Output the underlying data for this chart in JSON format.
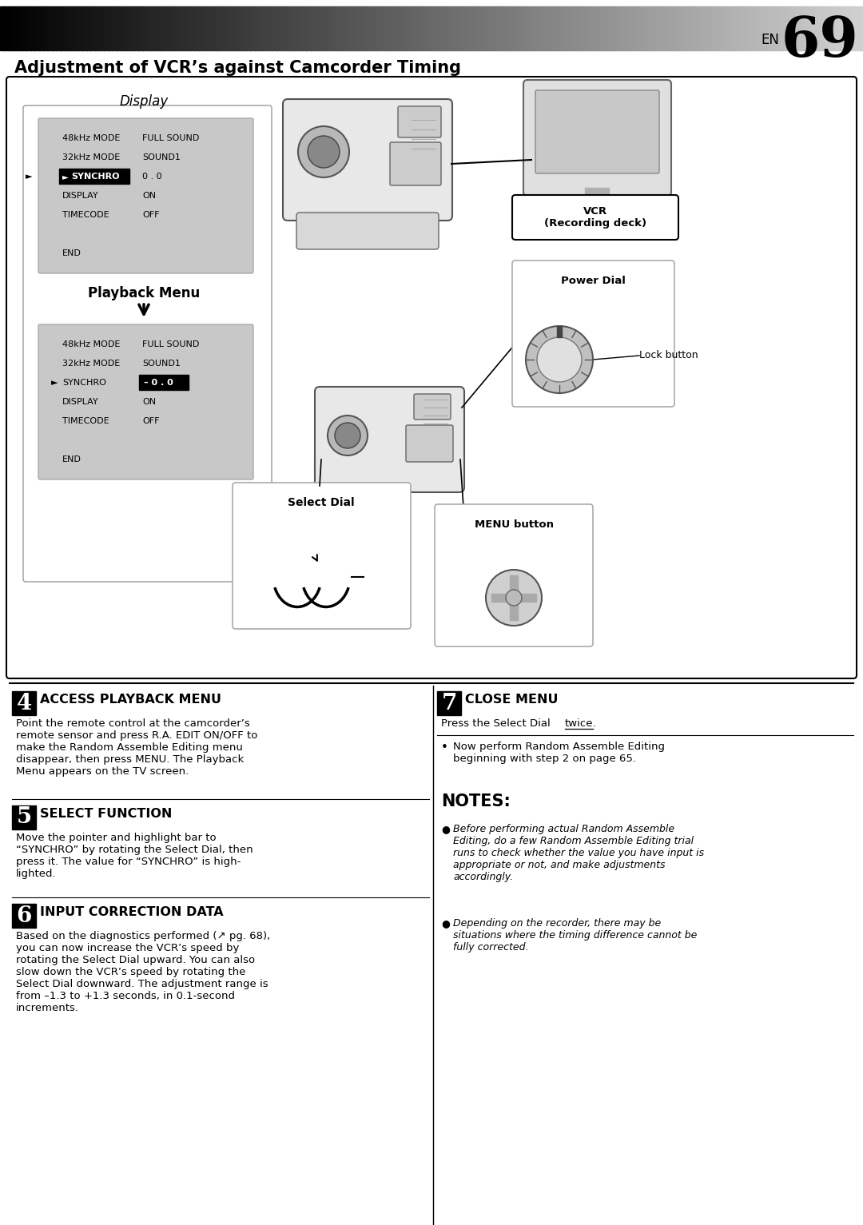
{
  "page_num": "69",
  "title": "Adjustment of VCR’s against Camcorder Timing",
  "bg_color": "#ffffff",
  "display_label": "Display",
  "playback_menu_label": "Playback Menu",
  "menu1_lines": [
    [
      "48kHz MODE",
      "FULL SOUND"
    ],
    [
      "32kHz MODE",
      "SOUND1"
    ],
    [
      "SYNCHRO",
      "0 . 0"
    ],
    [
      "DISPLAY",
      "ON"
    ],
    [
      "TIMECODE",
      "OFF"
    ],
    [
      "",
      ""
    ],
    [
      "END",
      ""
    ]
  ],
  "menu2_lines": [
    [
      "48kHz MODE",
      "FULL SOUND"
    ],
    [
      "32kHz MODE",
      "SOUND1"
    ],
    [
      "SYNCHRO",
      "– 0 . 0"
    ],
    [
      "DISPLAY",
      "ON"
    ],
    [
      "TIMECODE",
      "OFF"
    ],
    [
      "",
      ""
    ],
    [
      "END",
      ""
    ]
  ],
  "vcr_label": "VCR\n(Recording deck)",
  "select_dial_label": "Select Dial",
  "power_dial_label": "Power Dial",
  "lock_button_label": "Lock button",
  "menu_button_label": "MENU button",
  "step4_num": "4",
  "step4_title": "ACCESS PLAYBACK MENU",
  "step4_body1": "Point the remote control at the camcorder’s\nremote sensor and press ",
  "step4_body1_bold": "R.A. EDIT ON/OFF",
  "step4_body1_end": " to\nmake the Random Assemble Editing menu\ndisappear, then press ",
  "step4_body1_bold2": "MENU",
  "step4_body1_end2": ". The Playback\nMenu appears on the TV screen.",
  "step5_num": "5",
  "step5_title": "SELECT FUNCTION",
  "step5_body": "Move the pointer and highlight bar to\n“SYNCHRO” by rotating the Select Dial, then\npress it. The value for “SYNCHRO” is high-\nlighted.",
  "step6_num": "6",
  "step6_title": "INPUT CORRECTION DATA",
  "step6_body": "Based on the diagnostics performed (↗ pg. 68),\nyou can now increase the VCR’s speed by\nrotating the Select Dial upward. You can also\nslow down the VCR’s speed by rotating the\nSelect Dial downward. The adjustment range is\nfrom –1.3 to +1.3 seconds, in 0.1-second\nincrements.",
  "step7_num": "7",
  "step7_title": "CLOSE MENU",
  "step7_body_pre": "Press the Select Dial ",
  "step7_body_underline": "twice",
  "step7_body_post": ".",
  "step7_bullet": "Now perform Random Assemble Editing\nbeginning with step 2 on page 65.",
  "notes_title": "NOTES:",
  "note1": "Before performing actual Random Assemble\nEditing, do a few Random Assemble Editing trial\nruns to check whether the value you have input is\nappropriate or not, and make adjustments\naccordingly.",
  "note2": "Depending on the recorder, there may be\nsituations where the timing difference cannot be\nfully corrected."
}
